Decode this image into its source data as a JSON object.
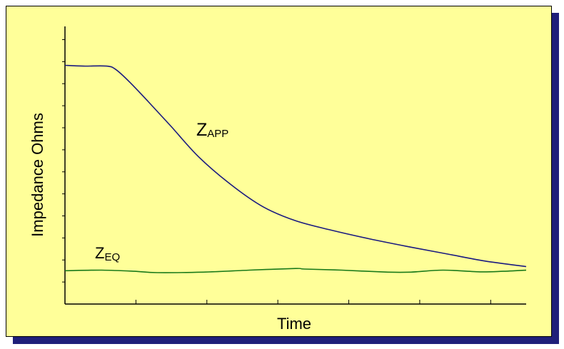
{
  "colors": {
    "background": "#ffff99",
    "shadow": "#1f1f7a",
    "axis": "#000000",
    "z_app": "#1a1a80",
    "z_eq": "#1a7a1a"
  },
  "chart_data": {
    "type": "line",
    "title": "",
    "xlabel": "Time",
    "ylabel": "Impedance Ohms",
    "xlim": [
      0,
      100
    ],
    "ylim": [
      0,
      100
    ],
    "x_tick_count": 6,
    "y_tick_count": 12,
    "grid": false,
    "legend": "none",
    "series": [
      {
        "name": "Z",
        "subscript": "APP",
        "color": "#1a1a80",
        "x": [
          0,
          4,
          9,
          11,
          14,
          18,
          23,
          29,
          36,
          43,
          50,
          58,
          66,
          75,
          83,
          91,
          100
        ],
        "y": [
          86,
          85.7,
          85.7,
          84.5,
          80,
          73,
          64,
          53,
          43,
          35,
          30,
          26.5,
          23.5,
          20.5,
          18,
          15.5,
          13.5
        ]
      },
      {
        "name": "Z",
        "subscript": "EQ",
        "color": "#1a7a1a",
        "x": [
          0,
          8,
          15,
          20,
          30,
          40,
          50,
          52,
          60,
          70,
          75,
          82,
          90,
          95,
          100
        ],
        "y": [
          12,
          12.2,
          11.8,
          11.3,
          11.5,
          12.2,
          12.8,
          12.6,
          12.2,
          11.5,
          11.5,
          12.2,
          11.6,
          11.8,
          12.2
        ]
      }
    ]
  }
}
